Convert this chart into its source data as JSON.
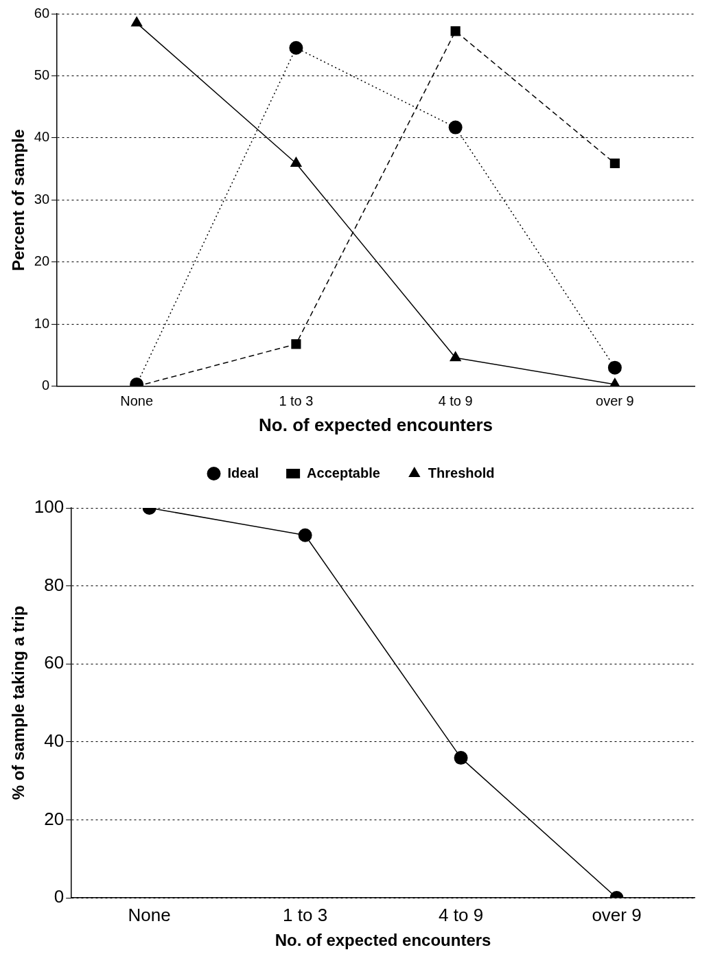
{
  "chart_data": [
    {
      "type": "line",
      "xlabel": "No. of expected encounters",
      "ylabel": "Percent of sample",
      "categories": [
        "None",
        "1 to 3",
        "4 to 9",
        "over 9"
      ],
      "ylim": [
        0,
        60
      ],
      "yticks": [
        0,
        10,
        20,
        30,
        40,
        50,
        60
      ],
      "grid": "y",
      "legend": "bottom",
      "series": [
        {
          "name": "Ideal",
          "color": "#000000",
          "marker": "circle",
          "line_style": "dotted",
          "values": [
            0.3,
            54.5,
            41.7,
            3.0
          ]
        },
        {
          "name": "Acceptable",
          "color": "#000000",
          "marker": "square",
          "line_style": "dashed",
          "values": [
            0,
            6.8,
            57.2,
            35.9
          ]
        },
        {
          "name": "Threshold",
          "color": "#000000",
          "marker": "triangle",
          "line_style": "solid",
          "values": [
            58.5,
            35.9,
            4.6,
            0.3
          ]
        }
      ]
    },
    {
      "type": "line",
      "xlabel": "No. of expected encounters",
      "ylabel": "% of sample taking a trip",
      "categories": [
        "None",
        "1 to 3",
        "4 to 9",
        "over 9"
      ],
      "ylim": [
        0,
        100
      ],
      "yticks": [
        0,
        20,
        40,
        60,
        80,
        100
      ],
      "grid": "y",
      "marker": "circle",
      "line_style": "solid",
      "series": [
        {
          "color": "#000000",
          "values": [
            100,
            93.0,
            35.9,
            0
          ]
        }
      ]
    }
  ]
}
